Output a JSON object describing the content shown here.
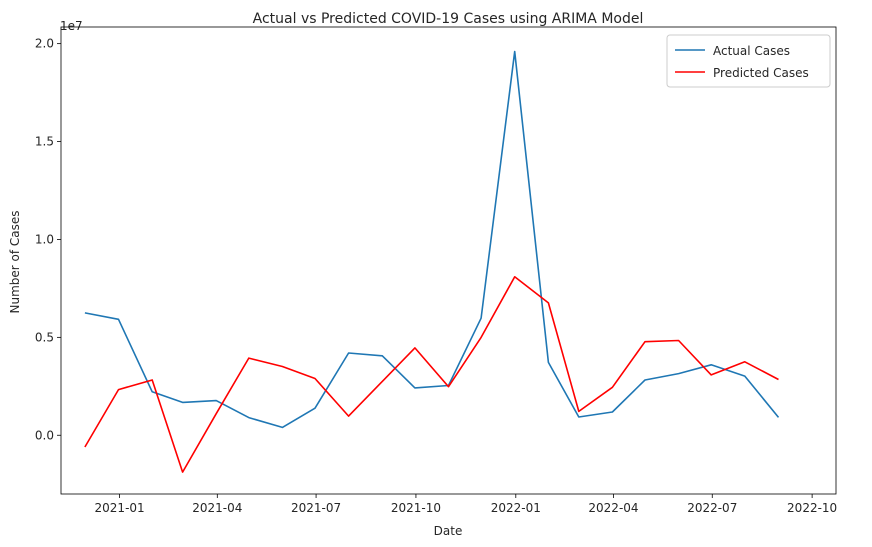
{
  "chart_data": {
    "type": "line",
    "title": "Actual vs Predicted COVID-19 Cases using ARIMA Model",
    "xlabel": "Date",
    "ylabel": "Number of Cases",
    "y_offset_label": "1e7",
    "x_type": "date",
    "xlim": [
      "2020-11-08",
      "2022-10-23"
    ],
    "ylim": [
      -3000000,
      20850000
    ],
    "x_ticks": [
      {
        "date": "2021-01-01",
        "label": "2021-01"
      },
      {
        "date": "2021-04-01",
        "label": "2021-04"
      },
      {
        "date": "2021-07-01",
        "label": "2021-07"
      },
      {
        "date": "2021-10-01",
        "label": "2021-10"
      },
      {
        "date": "2022-01-01",
        "label": "2022-01"
      },
      {
        "date": "2022-04-01",
        "label": "2022-04"
      },
      {
        "date": "2022-07-01",
        "label": "2022-07"
      },
      {
        "date": "2022-10-01",
        "label": "2022-10"
      }
    ],
    "y_ticks": [
      {
        "value": 0,
        "label": "0.0"
      },
      {
        "value": 5000000,
        "label": "0.5"
      },
      {
        "value": 10000000,
        "label": "1.0"
      },
      {
        "value": 15000000,
        "label": "1.5"
      },
      {
        "value": 20000000,
        "label": "2.0"
      }
    ],
    "x": [
      "2020-11-30",
      "2020-12-31",
      "2021-01-31",
      "2021-02-28",
      "2021-03-31",
      "2021-04-30",
      "2021-05-31",
      "2021-06-30",
      "2021-07-31",
      "2021-08-31",
      "2021-09-30",
      "2021-10-31",
      "2021-11-30",
      "2021-12-31",
      "2022-01-31",
      "2022-02-28",
      "2022-03-31",
      "2022-04-30",
      "2022-05-31",
      "2022-06-30",
      "2022-07-31",
      "2022-08-31"
    ],
    "series": [
      {
        "name": "Actual Cases",
        "color": "#1f77b4",
        "values": [
          6250000,
          5920000,
          2220000,
          1680000,
          1770000,
          900000,
          400000,
          1380000,
          4200000,
          4060000,
          2420000,
          2540000,
          5980000,
          19600000,
          3720000,
          930000,
          1190000,
          2820000,
          3150000,
          3600000,
          3020000,
          910000
        ]
      },
      {
        "name": "Predicted Cases",
        "color": "#ff0000",
        "values": [
          -600000,
          2330000,
          2820000,
          -1880000,
          1100000,
          3940000,
          3510000,
          2900000,
          980000,
          2750000,
          4460000,
          2480000,
          5000000,
          8090000,
          6760000,
          1220000,
          2450000,
          4780000,
          4840000,
          3080000,
          3750000,
          2850000
        ]
      }
    ],
    "grid": false,
    "legend_position": "top-right"
  }
}
